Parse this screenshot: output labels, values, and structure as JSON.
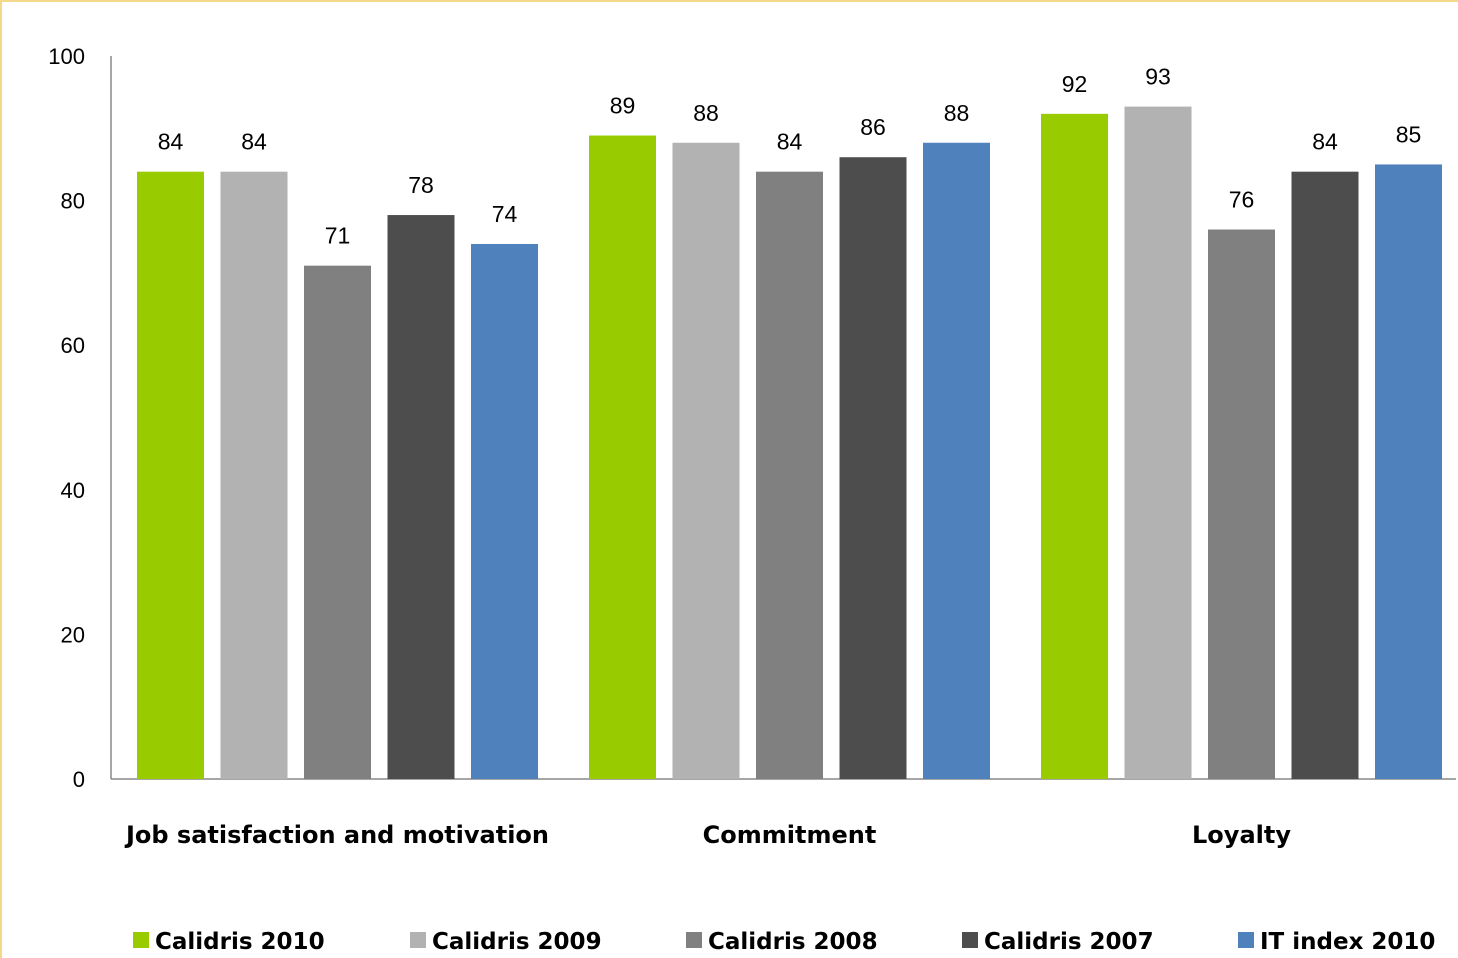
{
  "chart_data": {
    "type": "bar",
    "title": "",
    "xlabel": "",
    "ylabel": "",
    "ylim": [
      0,
      100
    ],
    "yticks": [
      0,
      20,
      40,
      60,
      80,
      100
    ],
    "grid": false,
    "legend_position": "bottom",
    "categories": [
      "Job satisfaction and motivation",
      "Commitment",
      "Loyalty"
    ],
    "series": [
      {
        "name": "Calidris 2010",
        "color": "#99cc00",
        "values": [
          84,
          89,
          92
        ]
      },
      {
        "name": "Calidris 2009",
        "color": "#b2b2b2",
        "values": [
          84,
          88,
          93
        ]
      },
      {
        "name": "Calidris 2008",
        "color": "#808080",
        "values": [
          71,
          84,
          76
        ]
      },
      {
        "name": "Calidris 2007",
        "color": "#4d4d4d",
        "values": [
          78,
          86,
          84
        ]
      },
      {
        "name": "IT index 2010",
        "color": "#4f81bd",
        "values": [
          74,
          88,
          85
        ]
      }
    ]
  }
}
